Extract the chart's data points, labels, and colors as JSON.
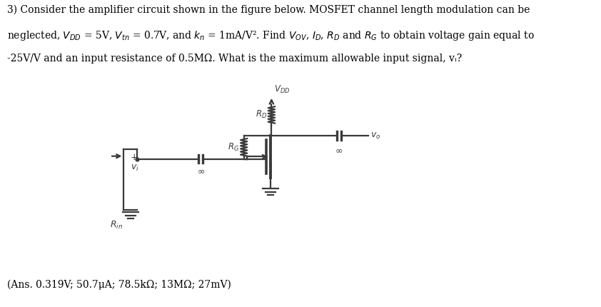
{
  "background_color": "#ffffff",
  "fig_width": 8.42,
  "fig_height": 4.3,
  "dpi": 100,
  "main_text_line1": "3) Consider the amplifier circuit shown in the figure below. MOSFET channel length modulation can be",
  "main_text_line2": "neglected, $V_{DD}$ = 5V, $V_{tn}$ = 0.7V, and $k_n$ = 1mA/V². Find $V_{OV}$, $I_D$, $R_D$ and $R_G$ to obtain voltage gain equal to",
  "main_text_line3": "-25V/V and an input resistance of 0.5MΩ. What is the maximum allowable input signal, vᵢ?",
  "ans_text": "(​Ans. 0.319V; 50.7μA; 78.5kΩ; 13MΩ; 27mV)",
  "main_fontsize": 10.0,
  "ans_fontsize": 10.0,
  "circuit_color": "#3a3a3a"
}
